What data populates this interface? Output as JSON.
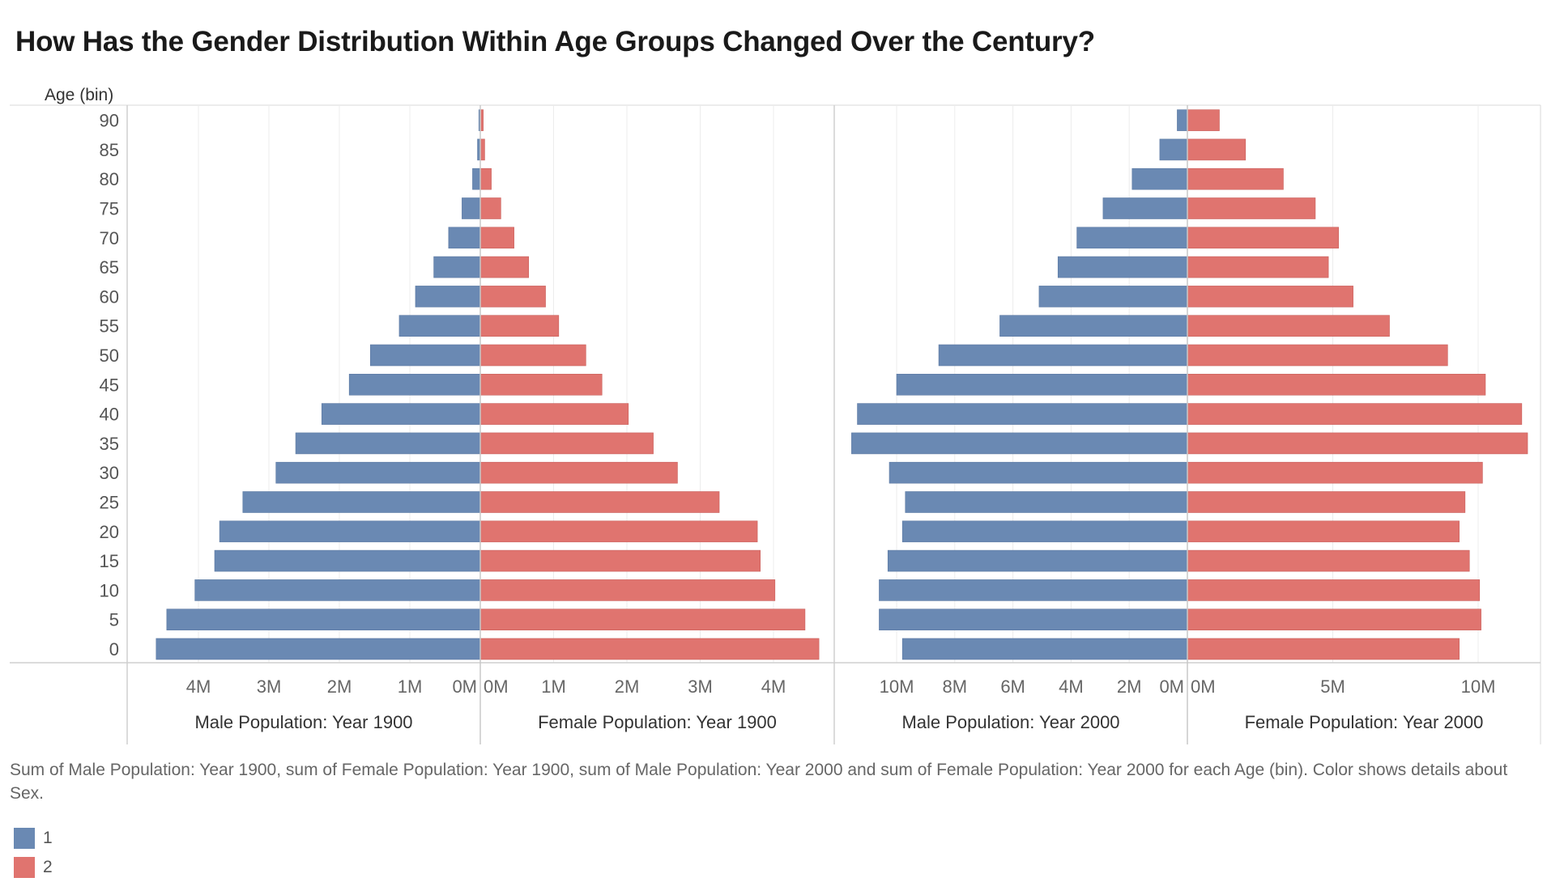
{
  "title": "How Has the Gender Distribution Within Age Groups Changed Over the Century?",
  "caption": "Sum of Male Population: Year 1900, sum of Female Population: Year 1900, sum of Male Population: Year 2000 and sum of Female Population: Year 2000 for each Age (bin).  Color shows details about Sex.",
  "legend": [
    {
      "label": "1",
      "color": "#6a89b3"
    },
    {
      "label": "2",
      "color": "#e0746f"
    }
  ],
  "chart_data": {
    "type": "bar",
    "orientation": "horizontal",
    "y_axis_title": "Age (bin)",
    "categories": [
      "0",
      "5",
      "10",
      "15",
      "20",
      "25",
      "30",
      "35",
      "40",
      "45",
      "50",
      "55",
      "60",
      "65",
      "70",
      "75",
      "80",
      "85",
      "90"
    ],
    "panels": [
      {
        "name": "Male Population: Year 1900",
        "color": "#6a89b3",
        "direction": "left",
        "max": 4.8,
        "ticks": [
          {
            "v": 4,
            "label": "4M"
          },
          {
            "v": 3,
            "label": "3M"
          },
          {
            "v": 2,
            "label": "2M"
          },
          {
            "v": 1,
            "label": "1M"
          },
          {
            "v": 0,
            "label": "0M"
          }
        ],
        "values": [
          4.6,
          4.45,
          4.05,
          3.77,
          3.7,
          3.37,
          2.9,
          2.62,
          2.25,
          1.86,
          1.56,
          1.15,
          0.92,
          0.66,
          0.45,
          0.26,
          0.11,
          0.04,
          0.02
        ]
      },
      {
        "name": "Female Population: Year 1900",
        "color": "#e0746f",
        "direction": "right",
        "max": 4.8,
        "ticks": [
          {
            "v": 0,
            "label": "0M"
          },
          {
            "v": 1,
            "label": "1M"
          },
          {
            "v": 2,
            "label": "2M"
          },
          {
            "v": 3,
            "label": "3M"
          },
          {
            "v": 4,
            "label": "4M"
          }
        ],
        "values": [
          4.62,
          4.43,
          4.02,
          3.82,
          3.78,
          3.26,
          2.69,
          2.36,
          2.02,
          1.66,
          1.44,
          1.07,
          0.89,
          0.66,
          0.46,
          0.28,
          0.15,
          0.06,
          0.04
        ]
      },
      {
        "name": "Male Population: Year 2000",
        "color": "#6a89b3",
        "direction": "left",
        "max": 12.0,
        "ticks": [
          {
            "v": 10,
            "label": "10M"
          },
          {
            "v": 8,
            "label": "8M"
          },
          {
            "v": 6,
            "label": "6M"
          },
          {
            "v": 4,
            "label": "4M"
          },
          {
            "v": 2,
            "label": "2M"
          },
          {
            "v": 0,
            "label": "0M"
          }
        ],
        "values": [
          9.8,
          10.6,
          10.6,
          10.3,
          9.8,
          9.7,
          10.25,
          11.55,
          11.35,
          10.0,
          8.55,
          6.45,
          5.1,
          4.45,
          3.8,
          2.9,
          1.9,
          0.95,
          0.35
        ]
      },
      {
        "name": "Female Population: Year 2000",
        "color": "#e0746f",
        "direction": "right",
        "max": 12.0,
        "ticks": [
          {
            "v": 0,
            "label": "0M"
          },
          {
            "v": 5,
            "label": "5M"
          },
          {
            "v": 10,
            "label": "10M"
          }
        ],
        "values": [
          9.35,
          10.1,
          10.05,
          9.7,
          9.35,
          9.55,
          10.15,
          11.7,
          11.5,
          10.25,
          8.95,
          6.95,
          5.7,
          4.85,
          5.2,
          4.4,
          3.3,
          2.0,
          1.1
        ]
      }
    ]
  }
}
